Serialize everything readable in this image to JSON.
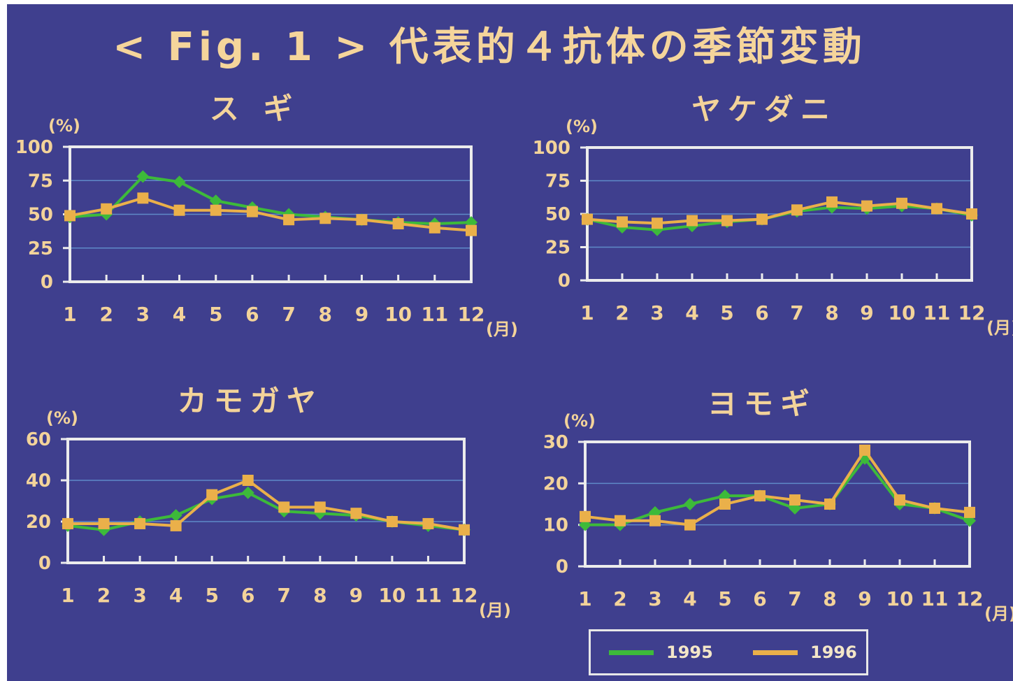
{
  "title": "< Fig. 1 > 代表的４抗体の季節変動",
  "colors": {
    "s1995": "#3dba3a",
    "s1996": "#eab04a",
    "frame": "#ececec",
    "grid": "#5f8ac8",
    "text": "#f3d39a"
  },
  "legend": [
    {
      "name": "1995",
      "color": "#3dba3a"
    },
    {
      "name": "1996",
      "color": "#eab04a"
    }
  ],
  "chart_data": [
    {
      "type": "line",
      "title": "ス ギ",
      "ylabel": "(%)",
      "xlabel": "(月)",
      "categories": [
        "1",
        "2",
        "3",
        "4",
        "5",
        "6",
        "7",
        "8",
        "9",
        "10",
        "11",
        "12"
      ],
      "ylim": [
        0,
        100
      ],
      "yticks": [
        "0",
        "25",
        "50",
        "75",
        "100"
      ],
      "yticks_values": [
        0,
        25,
        50,
        75,
        100
      ],
      "series": [
        {
          "name": "1995",
          "values": [
            48,
            50,
            78,
            74,
            60,
            55,
            50,
            48,
            46,
            44,
            43,
            44
          ]
        },
        {
          "name": "1996",
          "values": [
            49,
            54,
            62,
            53,
            53,
            52,
            46,
            47,
            46,
            43,
            40,
            38
          ]
        }
      ]
    },
    {
      "type": "line",
      "title": "ヤケダニ",
      "ylabel": "(%)",
      "xlabel": "(月)",
      "categories": [
        "1",
        "2",
        "3",
        "4",
        "5",
        "6",
        "7",
        "8",
        "9",
        "10",
        "11",
        "12"
      ],
      "ylim": [
        0,
        100
      ],
      "yticks": [
        "0",
        "25",
        "50",
        "75",
        "100"
      ],
      "yticks_values": [
        0,
        25,
        50,
        75,
        100
      ],
      "series": [
        {
          "name": "1995",
          "values": [
            46,
            40,
            38,
            41,
            44,
            46,
            52,
            55,
            54,
            56,
            54,
            49
          ]
        },
        {
          "name": "1996",
          "values": [
            46,
            44,
            43,
            45,
            45,
            46,
            53,
            59,
            56,
            58,
            54,
            50
          ]
        }
      ]
    },
    {
      "type": "line",
      "title": "カモガヤ",
      "ylabel": "(%)",
      "xlabel": "(月)",
      "categories": [
        "1",
        "2",
        "3",
        "4",
        "5",
        "6",
        "7",
        "8",
        "9",
        "10",
        "11",
        "12"
      ],
      "ylim": [
        0,
        60
      ],
      "yticks": [
        "0",
        "20",
        "40",
        "60"
      ],
      "yticks_values": [
        0,
        20,
        40,
        60
      ],
      "series": [
        {
          "name": "1995",
          "values": [
            18,
            16,
            20,
            23,
            31,
            34,
            25,
            24,
            23,
            20,
            18,
            16
          ]
        },
        {
          "name": "1996",
          "values": [
            19,
            19,
            19,
            18,
            33,
            40,
            27,
            27,
            24,
            20,
            19,
            16
          ]
        }
      ]
    },
    {
      "type": "line",
      "title": "ヨモギ",
      "ylabel": "(%)",
      "xlabel": "(月)",
      "categories": [
        "1",
        "2",
        "3",
        "4",
        "5",
        "6",
        "7",
        "8",
        "9",
        "10",
        "11",
        "12"
      ],
      "ylim": [
        0,
        30
      ],
      "yticks": [
        "0",
        "10",
        "20",
        "30"
      ],
      "yticks_values": [
        0,
        10,
        20,
        30
      ],
      "series": [
        {
          "name": "1995",
          "values": [
            10,
            10,
            13,
            15,
            17,
            17,
            14,
            15,
            26,
            15,
            14,
            11
          ]
        },
        {
          "name": "1996",
          "values": [
            12,
            11,
            11,
            10,
            15,
            17,
            16,
            15,
            28,
            16,
            14,
            13
          ]
        }
      ]
    }
  ]
}
